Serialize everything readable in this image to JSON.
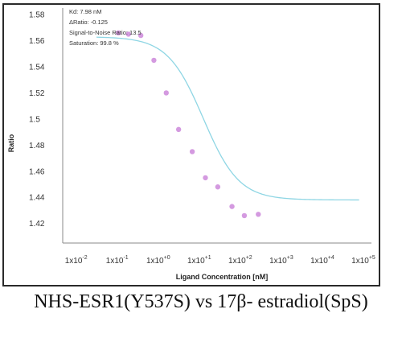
{
  "caption": "NHS-ESR1(Y537S) vs 17β- estradiol(SpS)",
  "chart_data": {
    "type": "scatter",
    "xlabel": "Ligand Concentration [nM]",
    "ylabel": "Ratio",
    "x_scale": "log",
    "xlim": [
      0.003,
      100000
    ],
    "ylim": [
      1.405,
      1.585
    ],
    "x_ticks": [
      {
        "value": 0.01,
        "base": "1x10",
        "exp": "-2"
      },
      {
        "value": 0.1,
        "base": "1x10",
        "exp": "-1"
      },
      {
        "value": 1,
        "base": "1x10",
        "exp": "+0"
      },
      {
        "value": 10,
        "base": "1x10",
        "exp": "+1"
      },
      {
        "value": 100,
        "base": "1x10",
        "exp": "+2"
      },
      {
        "value": 1000,
        "base": "1x10",
        "exp": "+3"
      },
      {
        "value": 10000,
        "base": "1x10",
        "exp": "+4"
      },
      {
        "value": 100000,
        "base": "1x10",
        "exp": "+5"
      }
    ],
    "y_ticks": [
      "1.58",
      "1.56",
      "1.54",
      "1.52",
      "1.5",
      "1.48",
      "1.46",
      "1.44",
      "1.42"
    ],
    "annotations": [
      "Kd: 7.98 nM",
      "ΔRatio: -0.125",
      "Signal-to-Noise Ratio: 13.5",
      "Saturation: 99.8 %"
    ],
    "series": [
      {
        "type": "scatter",
        "x": [
          0.068,
          0.12,
          0.24,
          0.5,
          1.0,
          2.0,
          4.3,
          9.0,
          18,
          40,
          80,
          175
        ],
        "y": [
          1.566,
          1.565,
          1.564,
          1.545,
          1.52,
          1.492,
          1.475,
          1.455,
          1.448,
          1.433,
          1.426,
          1.427
        ],
        "color": "#d49ae0"
      },
      {
        "type": "line",
        "kd": 7.98,
        "top": 1.563,
        "bottom": 1.438,
        "color": "#8fd6e4"
      }
    ]
  }
}
